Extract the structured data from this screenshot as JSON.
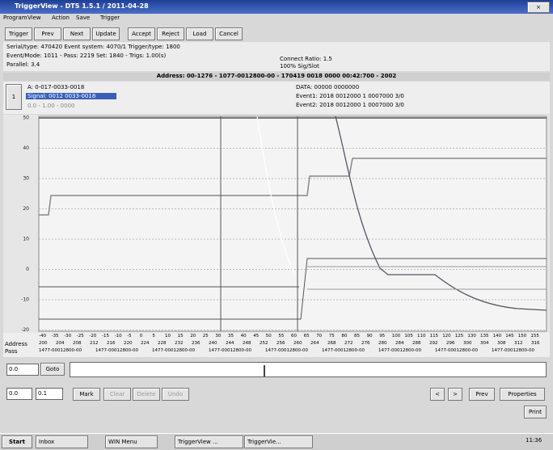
{
  "window": {
    "title": "TriggerView - DTS 1.5.1 / 2011-04-28",
    "menu": [
      "Program",
      "View",
      "Action",
      "Save",
      "Trigger"
    ]
  },
  "toolbar": [
    "Trigger",
    "Prev",
    "Next",
    "Update",
    "Accept",
    "Reject",
    "Load",
    "Cancel"
  ],
  "info": {
    "line1": "Serial/type: 470420  Event system: 4070/1  Trigger/type: 1800",
    "line2": "Event/Mode: 1011 - Pass: 2219 Set: 1840 - Trigs: 1.00(s)",
    "line3": "Parallel: 3.4",
    "right1": "Connect Ratio: 1.5",
    "right2": "100% Sig/Slot"
  },
  "header": "Address: 00-1276 - 1077-0012800-00 - 170419 0018 0000 00:42:700 - 2002",
  "legend": {
    "button": "1",
    "name": "A: 0-017-0033-0018",
    "sel": "Signal: 0012 0033-0018",
    "sub": "0.0 - 1.00 - 0000"
  },
  "details": [
    "DATA: 00000 0000000",
    "Event1: 2018 0012000 1 0007000 3/0",
    "Event2: 2018 0012000 1 0007000 3/0"
  ],
  "plot": {
    "yticks": [
      "50",
      "40",
      "30",
      "20",
      "10",
      "0",
      "-10",
      "-20"
    ],
    "xticks": [
      "-40",
      "-35",
      "-30",
      "-25",
      "-20",
      "-15",
      "-10",
      "-5",
      "0",
      "5",
      "10",
      "15",
      "20",
      "25",
      "30",
      "35",
      "40",
      "45",
      "50",
      "55",
      "60",
      "65",
      "70",
      "75",
      "80",
      "85",
      "90",
      "95",
      "100",
      "105",
      "110",
      "115",
      "120",
      "125",
      "130",
      "135",
      "140",
      "145",
      "150",
      "155"
    ]
  },
  "rows": {
    "address_label": "Address",
    "address": [
      "200",
      "204",
      "208",
      "212",
      "216",
      "220",
      "224",
      "228",
      "232",
      "236",
      "240",
      "244",
      "248",
      "252",
      "256",
      "260",
      "264",
      "268",
      "272",
      "276",
      "280",
      "284",
      "288",
      "292",
      "296",
      "300",
      "304",
      "308",
      "312",
      "316"
    ],
    "pass_label": "Pass",
    "pass": [
      "1477-00012800-00",
      "1477-00012800-00",
      "1477-00012800-00",
      "1477-00012800-00",
      "1477-00012800-00",
      "1477-00012800-00",
      "1477-00012800-00",
      "1477-00012800-00",
      "1477-00012800-00"
    ]
  },
  "controls": {
    "goto_input": "0.0",
    "goto": "Goto",
    "from": "0.0",
    "to": "0.1",
    "mark": "Mark",
    "clear": "Clear",
    "delete": "Delete",
    "undo": "Undo",
    "left": "<",
    "right": ">",
    "prev": "Prev",
    "properties": "Properties",
    "print": "Print"
  },
  "taskbar": {
    "start": "Start",
    "items": [
      "Inbox",
      "WIN Menu",
      "TriggerView ...",
      "TriggerVie..."
    ],
    "clock": "11:36"
  }
}
